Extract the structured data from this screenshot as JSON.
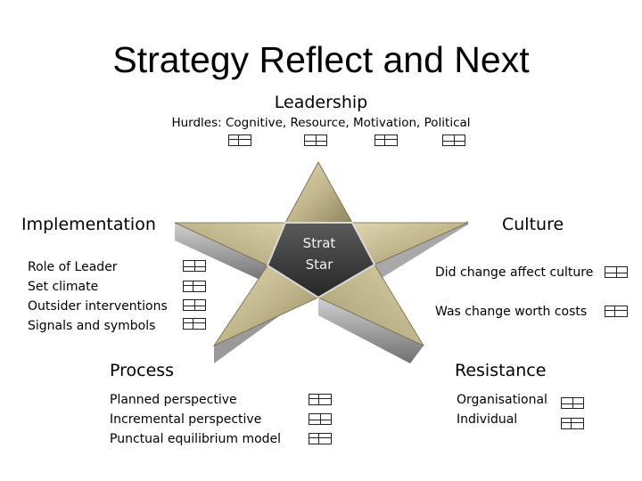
{
  "title": "Strategy Reflect and Next",
  "center": {
    "line1": "Strat",
    "line2": "Star"
  },
  "leadership": {
    "heading": "Leadership",
    "subtitle": "Hurdles: Cognitive, Resource, Motivation, Political"
  },
  "implementation": {
    "heading": "Implementation",
    "items": [
      "Role of Leader",
      "Set climate",
      "Outsider interventions",
      "Signals and symbols"
    ]
  },
  "culture": {
    "heading": "Culture",
    "items": [
      "Did change affect culture",
      "Was change worth costs"
    ]
  },
  "process": {
    "heading": "Process",
    "items": [
      "Planned perspective",
      "Incremental perspective",
      "Punctual equilibrium model"
    ]
  },
  "resistance": {
    "heading": "Resistance",
    "items": [
      "Organisational",
      "Individual"
    ]
  },
  "icon_name": "table-grid-icon",
  "colors": {
    "star_gold": "#bfb48a",
    "center": "#3c3c3c"
  }
}
